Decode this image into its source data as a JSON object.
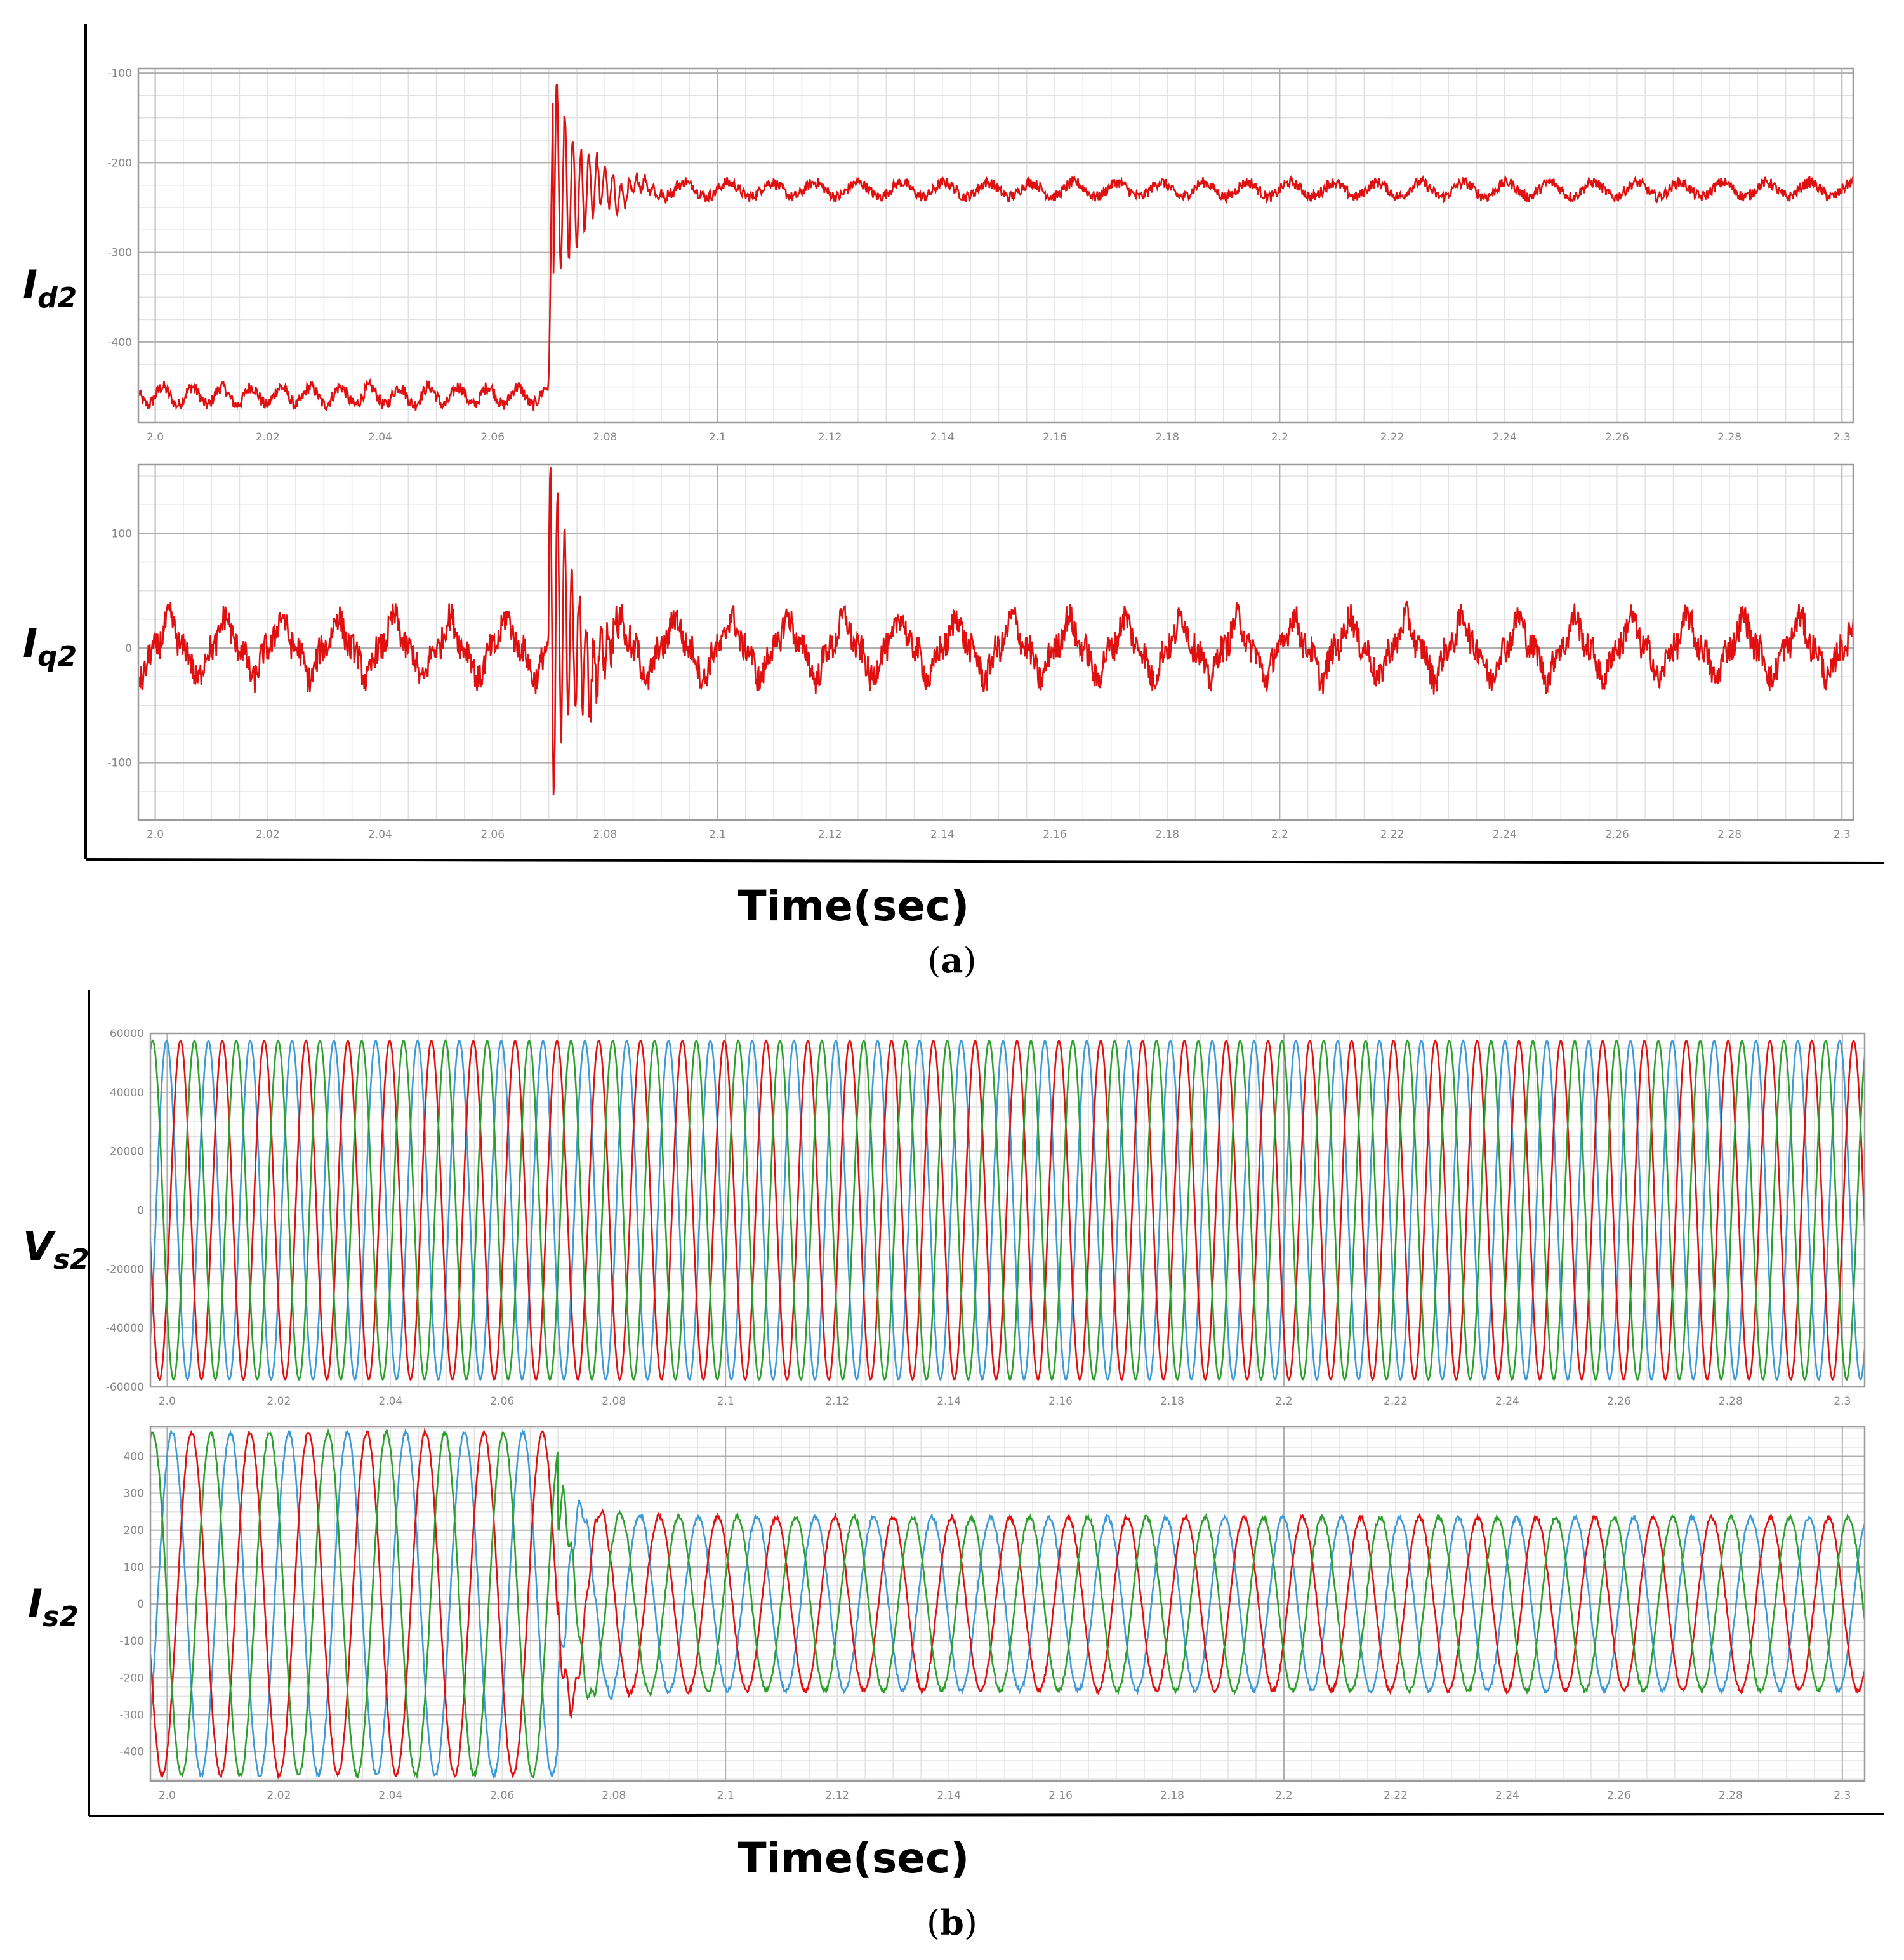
{
  "captions": {
    "a": "a",
    "b": "b"
  },
  "colors": {
    "red": "#e01010",
    "green": "#2ca02c",
    "blue": "#3c9ad6",
    "grid_major": "#b0b0b0",
    "grid_minor": "#e2e2e2",
    "frame": "#9a9a9a"
  },
  "chart_data": [
    {
      "id": "id2",
      "type": "line",
      "ylabel_main": "I",
      "ylabel_sub": "d2",
      "xlabel": "Time(sec)",
      "xlim": [
        1.997,
        2.302
      ],
      "ylim": [
        -490,
        -95
      ],
      "x_ticks": [
        {
          "v": 2.0,
          "t": "2.0"
        },
        {
          "v": 2.02,
          "t": "2.02"
        },
        {
          "v": 2.04,
          "t": "2.04"
        },
        {
          "v": 2.06,
          "t": "2.06"
        },
        {
          "v": 2.08,
          "t": "2.08"
        },
        {
          "v": 2.1,
          "t": "2.1"
        },
        {
          "v": 2.12,
          "t": "2.12"
        },
        {
          "v": 2.14,
          "t": "2.14"
        },
        {
          "v": 2.16,
          "t": "2.16"
        },
        {
          "v": 2.18,
          "t": "2.18"
        },
        {
          "v": 2.2,
          "t": "2.2"
        },
        {
          "v": 2.22,
          "t": "2.22"
        },
        {
          "v": 2.24,
          "t": "2.24"
        },
        {
          "v": 2.26,
          "t": "2.26"
        },
        {
          "v": 2.28,
          "t": "2.28"
        },
        {
          "v": 2.3,
          "t": "2.3"
        }
      ],
      "y_ticks": [
        {
          "v": -100,
          "t": "-100"
        },
        {
          "v": -200,
          "t": "-200"
        },
        {
          "v": -300,
          "t": "-300"
        },
        {
          "v": -400,
          "t": "-400"
        }
      ],
      "series": [
        {
          "color": "#e01010",
          "description": "steady ~-460 until 2.070 s, then step to ~-230 with decaying oscillation",
          "pre_level": -460,
          "post_level": -230,
          "step_time": 2.07,
          "peaks": [
            {
              "x": 2.0712,
              "y": -105
            },
            {
              "x": 2.0725,
              "y": -375
            },
            {
              "x": 2.0738,
              "y": -140
            },
            {
              "x": 2.0752,
              "y": -335
            },
            {
              "x": 2.0768,
              "y": -172
            },
            {
              "x": 2.0785,
              "y": -300
            },
            {
              "x": 2.0805,
              "y": -195
            },
            {
              "x": 2.0828,
              "y": -272
            },
            {
              "x": 2.0855,
              "y": -215
            },
            {
              "x": 2.0885,
              "y": -255
            }
          ]
        }
      ]
    },
    {
      "id": "iq2",
      "type": "line",
      "ylabel_main": "I",
      "ylabel_sub": "q2",
      "xlabel": "Time(sec)",
      "xlim": [
        1.997,
        2.302
      ],
      "ylim": [
        -150,
        160
      ],
      "x_ticks": [
        {
          "v": 2.0,
          "t": "2.0"
        },
        {
          "v": 2.02,
          "t": "2.02"
        },
        {
          "v": 2.04,
          "t": "2.04"
        },
        {
          "v": 2.06,
          "t": "2.06"
        },
        {
          "v": 2.08,
          "t": "2.08"
        },
        {
          "v": 2.1,
          "t": "2.1"
        },
        {
          "v": 2.12,
          "t": "2.12"
        },
        {
          "v": 2.14,
          "t": "2.14"
        },
        {
          "v": 2.16,
          "t": "2.16"
        },
        {
          "v": 2.18,
          "t": "2.18"
        },
        {
          "v": 2.2,
          "t": "2.2"
        },
        {
          "v": 2.22,
          "t": "2.22"
        },
        {
          "v": 2.24,
          "t": "2.24"
        },
        {
          "v": 2.26,
          "t": "2.26"
        },
        {
          "v": 2.28,
          "t": "2.28"
        },
        {
          "v": 2.3,
          "t": "2.3"
        }
      ],
      "y_ticks": [
        {
          "v": 100,
          "t": "100"
        },
        {
          "v": 0,
          "t": "0"
        },
        {
          "v": -100,
          "t": "-100"
        }
      ],
      "series": [
        {
          "color": "#e01010",
          "description": "oscillation about 0 with ~+/-30 ripple, large disturbance at 2.070 s",
          "mean": 0,
          "ripple_amplitude": 28,
          "disturbance_time": 2.07,
          "peaks": [
            {
              "x": 2.0708,
              "y": 158
            },
            {
              "x": 2.0718,
              "y": -148
            },
            {
              "x": 2.0728,
              "y": 112
            },
            {
              "x": 2.074,
              "y": -122
            },
            {
              "x": 2.0755,
              "y": 68
            },
            {
              "x": 2.0772,
              "y": -65
            },
            {
              "x": 2.079,
              "y": 40
            },
            {
              "x": 2.081,
              "y": -40
            }
          ]
        }
      ]
    },
    {
      "id": "vs2",
      "type": "line",
      "ylabel_main": "V",
      "ylabel_sub": "s2",
      "xlabel": "",
      "xlim": [
        1.997,
        2.304
      ],
      "ylim": [
        -60000,
        60000
      ],
      "x_ticks": [
        {
          "v": 2.0,
          "t": "2.0"
        },
        {
          "v": 2.02,
          "t": "2.02"
        },
        {
          "v": 2.04,
          "t": "2.04"
        },
        {
          "v": 2.06,
          "t": "2.06"
        },
        {
          "v": 2.08,
          "t": "2.08"
        },
        {
          "v": 2.1,
          "t": "2.1"
        },
        {
          "v": 2.12,
          "t": "2.12"
        },
        {
          "v": 2.14,
          "t": "2.14"
        },
        {
          "v": 2.16,
          "t": "2.16"
        },
        {
          "v": 2.18,
          "t": "2.18"
        },
        {
          "v": 2.2,
          "t": "2.2"
        },
        {
          "v": 2.22,
          "t": "2.22"
        },
        {
          "v": 2.24,
          "t": "2.24"
        },
        {
          "v": 2.26,
          "t": "2.26"
        },
        {
          "v": 2.28,
          "t": "2.28"
        },
        {
          "v": 2.3,
          "t": "2.3"
        }
      ],
      "y_ticks": [
        {
          "v": 60000,
          "t": "60000"
        },
        {
          "v": 40000,
          "t": "40000"
        },
        {
          "v": 20000,
          "t": "20000"
        },
        {
          "v": 0,
          "t": "0"
        },
        {
          "v": -20000,
          "t": "-20000"
        },
        {
          "v": -40000,
          "t": "-40000"
        },
        {
          "v": -60000,
          "t": "-60000"
        }
      ],
      "series": [
        {
          "color": "#3c9ad6",
          "amplitude": 57500,
          "frequency_hz": 133.5,
          "phase_deg": 95
        },
        {
          "color": "#e01010",
          "amplitude": 57500,
          "frequency_hz": 133.5,
          "phase_deg": -25
        },
        {
          "color": "#2ca02c",
          "amplitude": 57500,
          "frequency_hz": 133.5,
          "phase_deg": 215
        }
      ]
    },
    {
      "id": "is2",
      "type": "line",
      "ylabel_main": "I",
      "ylabel_sub": "s2",
      "xlabel": "Time(sec)",
      "xlim": [
        1.997,
        2.304
      ],
      "ylim": [
        -480,
        480
      ],
      "x_ticks": [
        {
          "v": 2.0,
          "t": "2.0"
        },
        {
          "v": 2.02,
          "t": "2.02"
        },
        {
          "v": 2.04,
          "t": "2.04"
        },
        {
          "v": 2.06,
          "t": "2.06"
        },
        {
          "v": 2.08,
          "t": "2.08"
        },
        {
          "v": 2.1,
          "t": "2.1"
        },
        {
          "v": 2.12,
          "t": "2.12"
        },
        {
          "v": 2.14,
          "t": "2.14"
        },
        {
          "v": 2.16,
          "t": "2.16"
        },
        {
          "v": 2.18,
          "t": "2.18"
        },
        {
          "v": 2.2,
          "t": "2.2"
        },
        {
          "v": 2.22,
          "t": "2.22"
        },
        {
          "v": 2.24,
          "t": "2.24"
        },
        {
          "v": 2.26,
          "t": "2.26"
        },
        {
          "v": 2.28,
          "t": "2.28"
        },
        {
          "v": 2.3,
          "t": "2.3"
        }
      ],
      "y_ticks": [
        {
          "v": 400,
          "t": "400"
        },
        {
          "v": 300,
          "t": "300"
        },
        {
          "v": 200,
          "t": "200"
        },
        {
          "v": 100,
          "t": "100"
        },
        {
          "v": 0,
          "t": "0"
        },
        {
          "v": -100,
          "t": "-100"
        },
        {
          "v": -200,
          "t": "-200"
        },
        {
          "v": -300,
          "t": "-300"
        },
        {
          "v": -400,
          "t": "-400"
        }
      ],
      "series": [
        {
          "color": "#3c9ad6",
          "amplitude_before": 465,
          "amplitude_after": 235,
          "change_time": 2.07,
          "frequency_hz": 95.5,
          "phase_deg": 60
        },
        {
          "color": "#e01010",
          "amplitude_before": 465,
          "amplitude_after": 235,
          "change_time": 2.07,
          "frequency_hz": 95.5,
          "phase_deg": -60
        },
        {
          "color": "#2ca02c",
          "amplitude_before": 465,
          "amplitude_after": 235,
          "change_time": 2.07,
          "frequency_hz": 95.5,
          "phase_deg": 180
        }
      ]
    }
  ]
}
